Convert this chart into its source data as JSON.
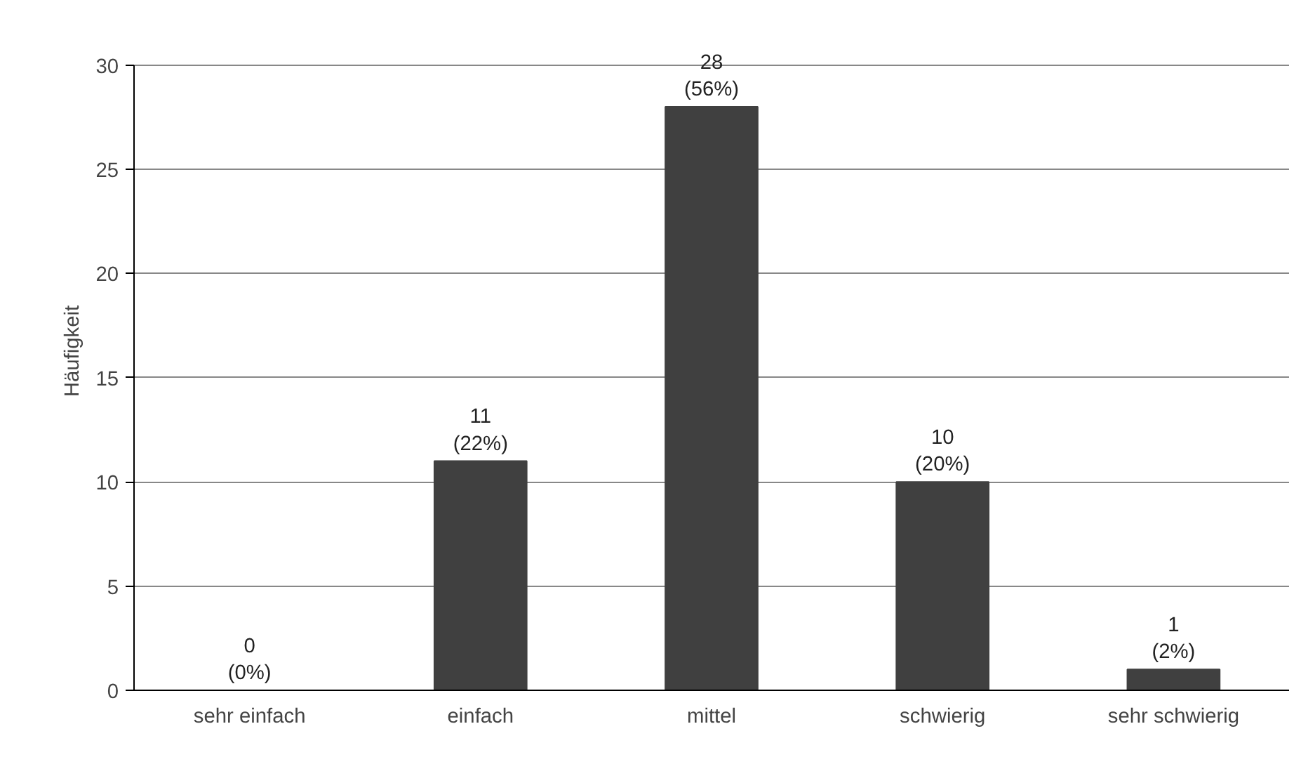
{
  "chart_data": {
    "type": "bar",
    "ylabel": "Häufigkeit",
    "categories": [
      "sehr einfach",
      "einfach",
      "mittel",
      "schwierig",
      "sehr schwierig"
    ],
    "values": [
      0,
      11,
      28,
      10,
      1
    ],
    "value_labels": [
      "0\n(0%)",
      "11\n(22%)",
      "28\n(56%)",
      "10\n(20%)",
      "1\n(2%)"
    ],
    "color": "#404040",
    "ylim": [
      0,
      30
    ],
    "yticks": [
      0,
      5,
      10,
      15,
      20,
      25,
      30
    ],
    "grid": "y"
  }
}
